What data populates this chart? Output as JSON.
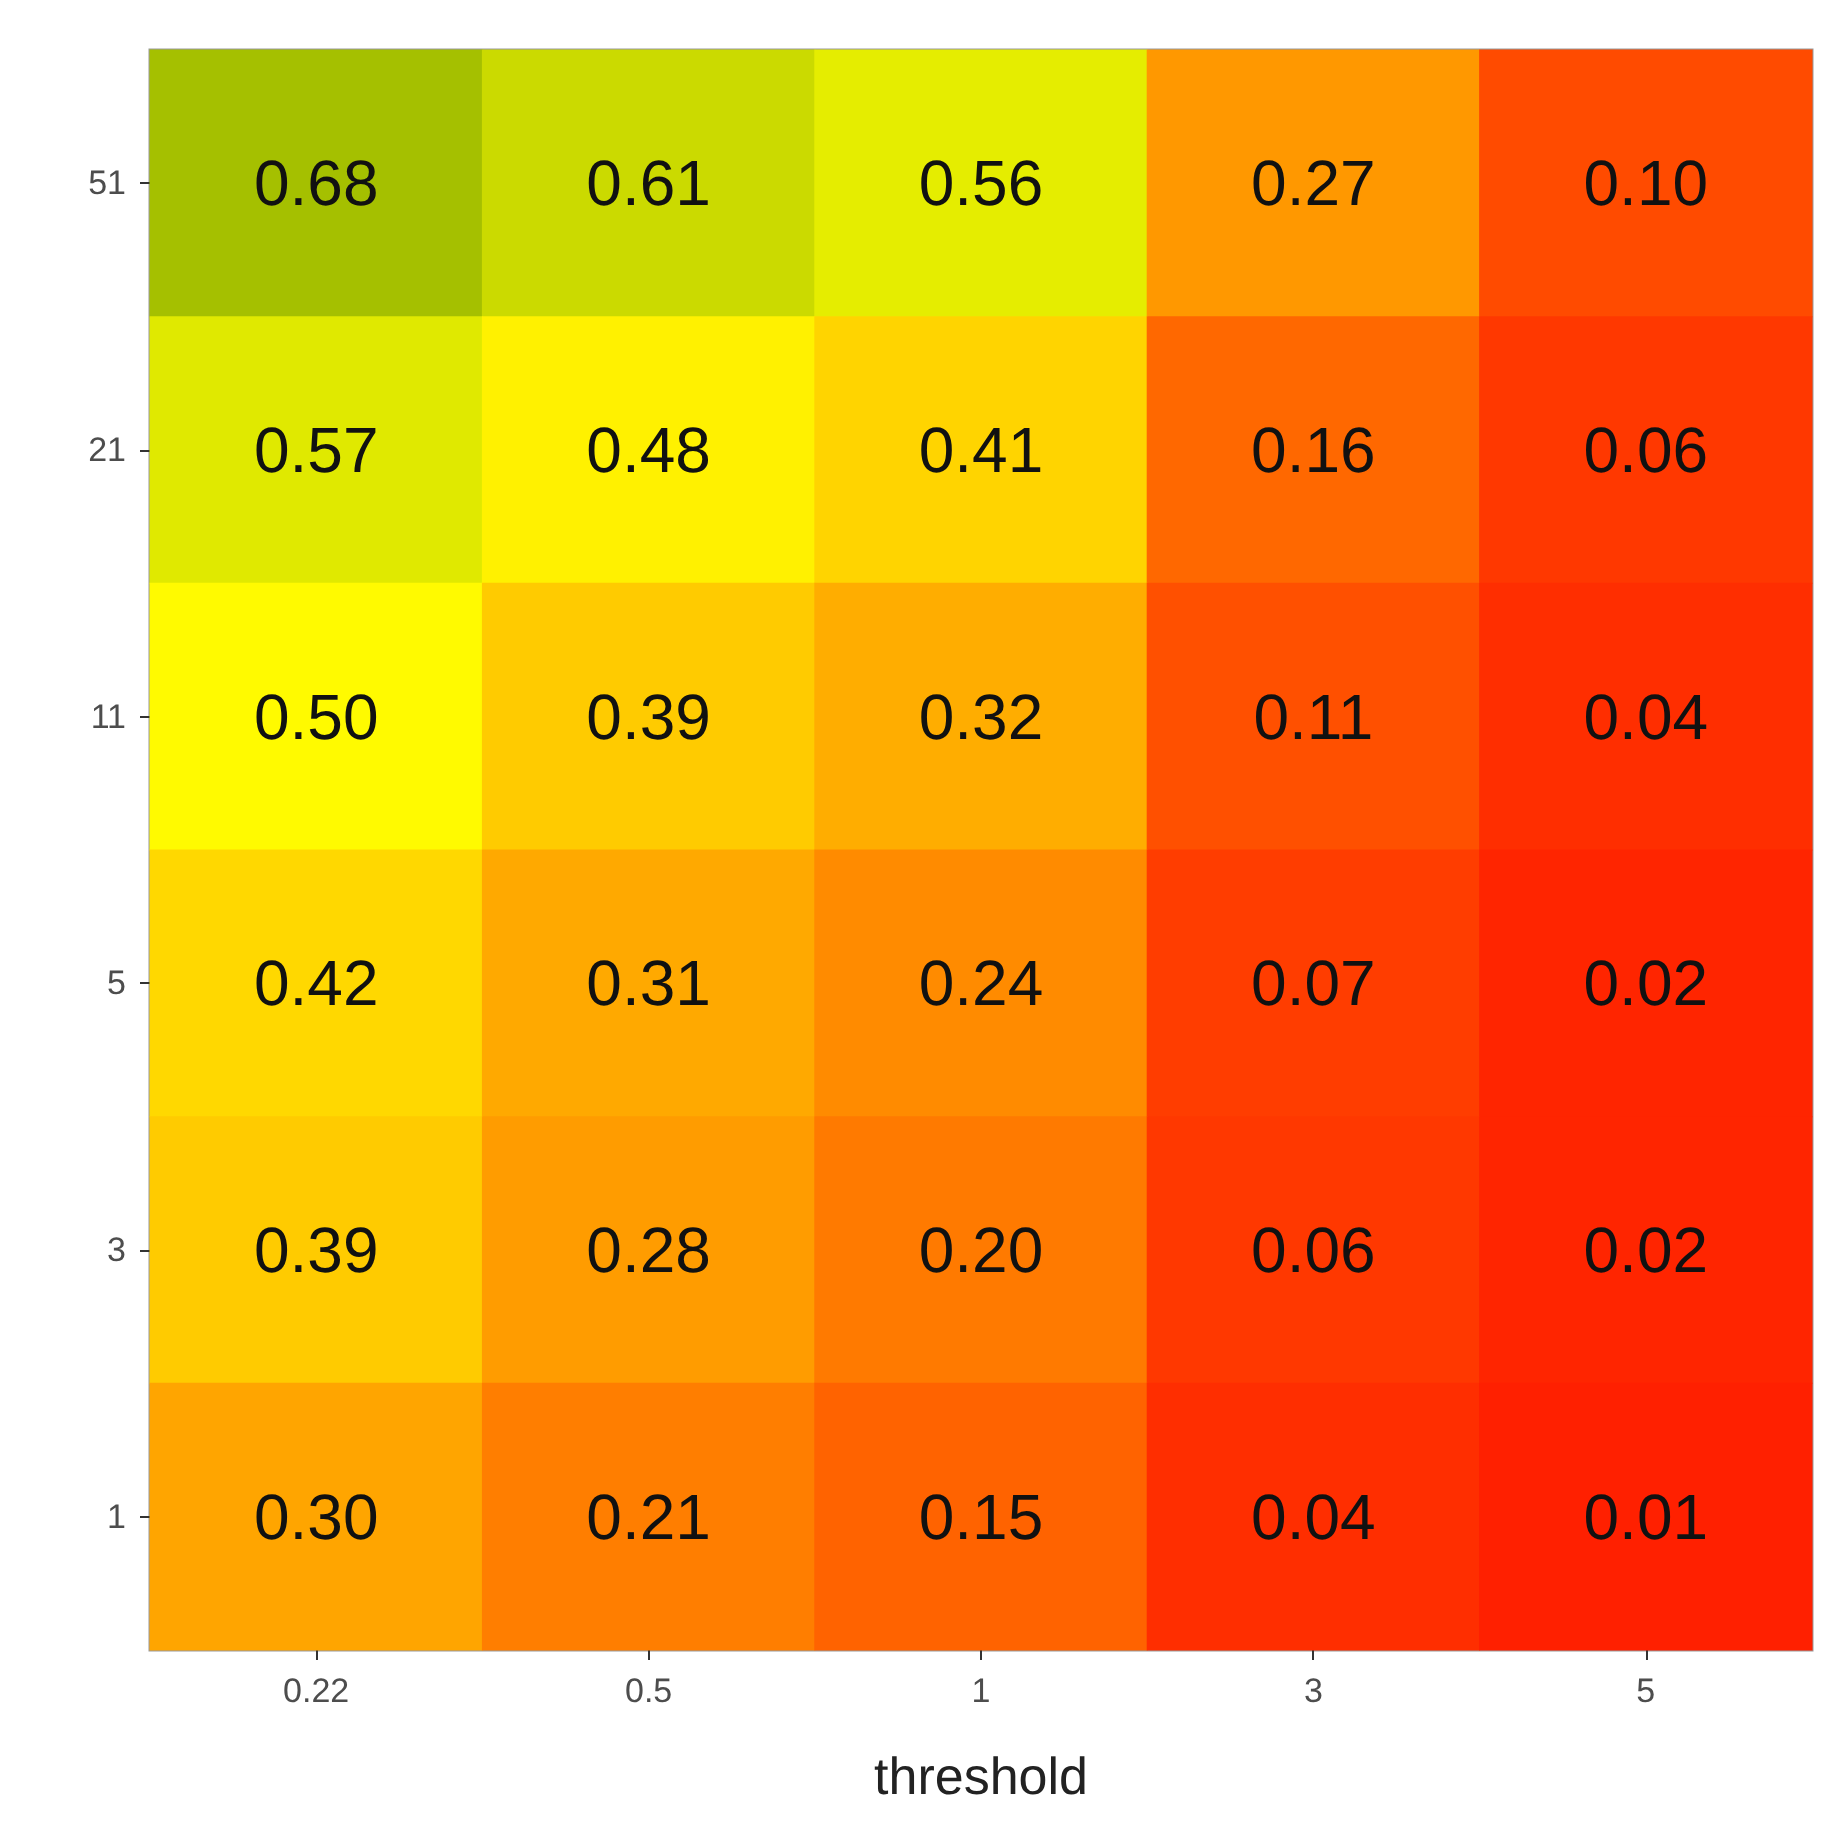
{
  "chart_data": {
    "type": "heatmap",
    "xlabel": "threshold",
    "categories": [
      "0.22",
      "0.5",
      "1",
      "3",
      "5"
    ],
    "y_categories": [
      "51",
      "21",
      "11",
      "5",
      "3",
      "1"
    ],
    "cells": [
      [
        0.68,
        0.61,
        0.56,
        0.27,
        0.1
      ],
      [
        0.57,
        0.48,
        0.41,
        0.16,
        0.06
      ],
      [
        0.5,
        0.39,
        0.32,
        0.11,
        0.04
      ],
      [
        0.42,
        0.31,
        0.24,
        0.07,
        0.02
      ],
      [
        0.39,
        0.28,
        0.2,
        0.06,
        0.02
      ],
      [
        0.3,
        0.21,
        0.15,
        0.04,
        0.01
      ]
    ],
    "cell_labels": [
      [
        "0.68",
        "0.61",
        "0.56",
        "0.27",
        "0.10"
      ],
      [
        "0.57",
        "0.48",
        "0.41",
        "0.16",
        "0.06"
      ],
      [
        "0.50",
        "0.39",
        "0.32",
        "0.11",
        "0.04"
      ],
      [
        "0.42",
        "0.31",
        "0.24",
        "0.07",
        "0.02"
      ],
      [
        "0.39",
        "0.28",
        "0.20",
        "0.06",
        "0.02"
      ],
      [
        "0.30",
        "0.21",
        "0.15",
        "0.04",
        "0.01"
      ]
    ],
    "colors": [
      "#ff2000",
      "#ff7000",
      "#ffb800",
      "#ffff00",
      "#a5c000"
    ]
  }
}
